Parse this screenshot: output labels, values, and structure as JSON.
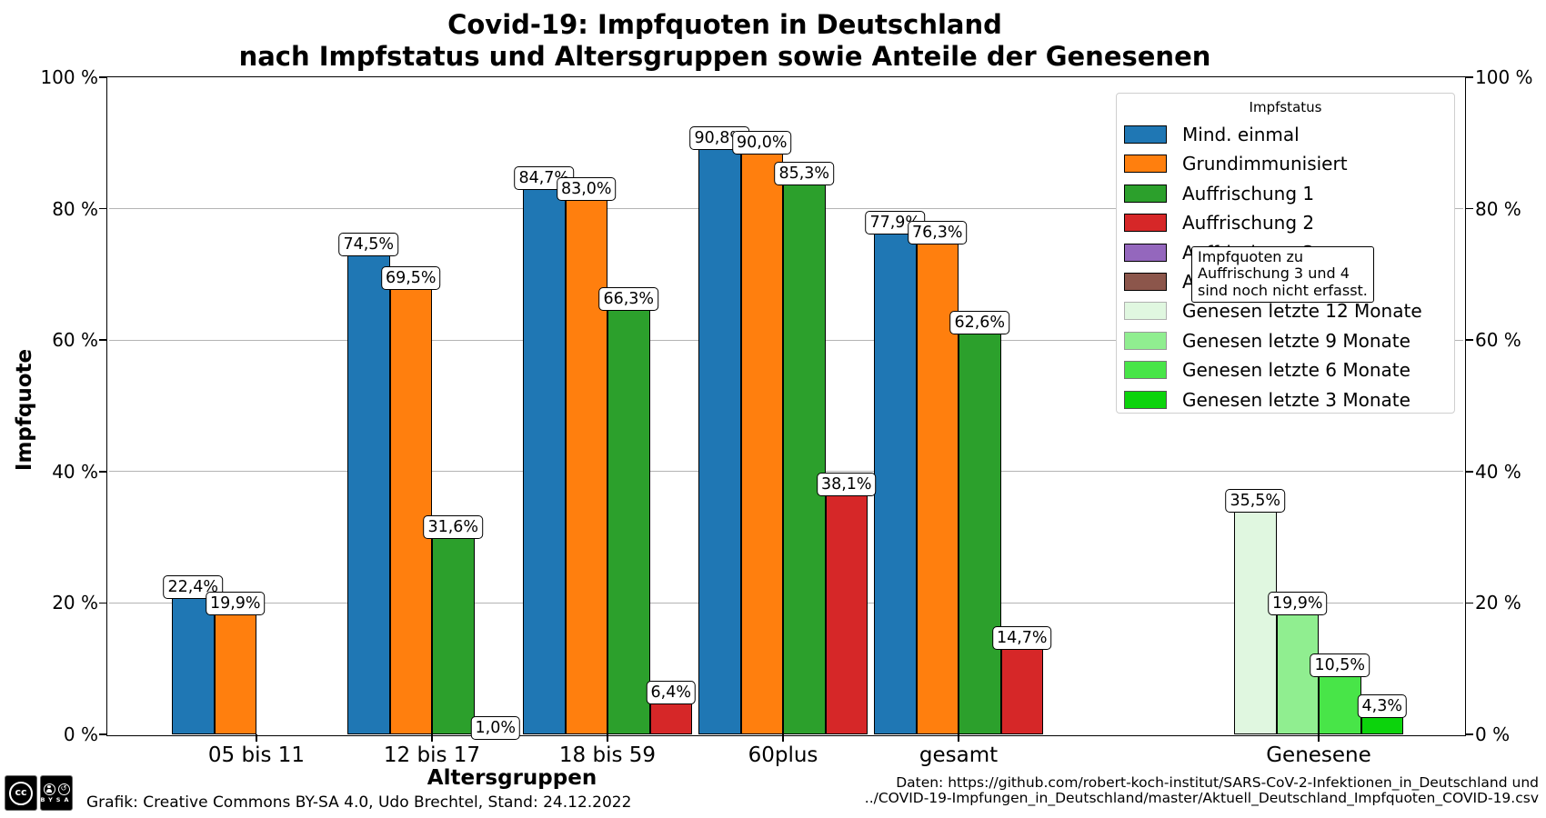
{
  "title": {
    "line1": "Covid-19: Impfquoten in Deutschland",
    "line2": "nach Impfstatus und Altersgruppen sowie Anteile der Genesenen"
  },
  "chart_data": {
    "type": "bar",
    "title": "Covid-19: Impfquoten in Deutschland nach Impfstatus und Altersgruppen sowie Anteile der Genesenen",
    "xlabel": "Altersgruppen",
    "ylabel": "Impfquote",
    "ylim": [
      0,
      100
    ],
    "yticks": [
      0,
      20,
      40,
      60,
      80,
      100
    ],
    "ytick_suffix": " %",
    "grid": "horizontal-only",
    "value_label_format": "decimal-comma-percent",
    "categories": [
      "05 bis 11",
      "12 bis 17",
      "18 bis 59",
      "60plus",
      "gesamt"
    ],
    "series": [
      {
        "name": "Mind. einmal",
        "color": "#1f77b4",
        "values": [
          22.4,
          74.5,
          84.7,
          90.8,
          77.9
        ]
      },
      {
        "name": "Grundimmunisiert",
        "color": "#ff7f0e",
        "values": [
          19.9,
          69.5,
          83.0,
          90.0,
          76.3
        ]
      },
      {
        "name": "Auffrischung 1",
        "color": "#2ca02c",
        "values": [
          null,
          31.6,
          66.3,
          85.3,
          62.6
        ]
      },
      {
        "name": "Auffrischung 2",
        "color": "#d62728",
        "values": [
          null,
          1.0,
          6.4,
          38.1,
          14.7
        ]
      }
    ],
    "recovered_group": {
      "category": "Genesene",
      "bars": [
        {
          "name": "Genesen letzte 12 Monate",
          "color": "#e0f7e0",
          "value": 35.5
        },
        {
          "name": "Genesen letzte 9 Monate",
          "color": "#90ee90",
          "value": 19.9
        },
        {
          "name": "Genesen letzte 6 Monate",
          "color": "#48e548",
          "value": 10.5
        },
        {
          "name": "Genesen letzte 3 Monate",
          "color": "#0cd30c",
          "value": 4.3
        }
      ]
    }
  },
  "legend": {
    "title": "Impfstatus",
    "entries": [
      {
        "label": "Mind. einmal",
        "color": "#1f77b4",
        "border": "#000000"
      },
      {
        "label": "Grundimmunisiert",
        "color": "#ff7f0e",
        "border": "#000000"
      },
      {
        "label": "Auffrischung 1",
        "color": "#2ca02c",
        "border": "#000000"
      },
      {
        "label": "Auffrischung 2",
        "color": "#d62728",
        "border": "#000000"
      },
      {
        "label": "Auffrischung 3",
        "color": "#9467bd",
        "border": "#000000"
      },
      {
        "label": "Auffrischung 4",
        "color": "#8c564b",
        "border": "#000000"
      },
      {
        "label": "Genesen letzte 12 Monate",
        "color": "#e0f7e0",
        "border": "#b0b0b0"
      },
      {
        "label": "Genesen letzte 9 Monate",
        "color": "#90ee90",
        "border": "#9a9a9a"
      },
      {
        "label": "Genesen letzte 6 Monate",
        "color": "#48e548",
        "border": "#7a7a7a"
      },
      {
        "label": "Genesen letzte 3 Monate",
        "color": "#0cd30c",
        "border": "#555555"
      }
    ]
  },
  "annotation": {
    "lines": [
      "Impfquoten zu",
      "Auffrischung 3 und 4",
      "sind noch nicht erfasst."
    ]
  },
  "footer": {
    "grafik": "Grafik: Creative Commons BY-SA 4.0, Udo Brechtel, Stand: 24.12.2022",
    "daten_line1": "Daten: https://github.com/robert-koch-institut/SARS-CoV-2-Infektionen_in_Deutschland und",
    "daten_line2": "../COVID-19-Impfungen_in_Deutschland/master/Aktuell_Deutschland_Impfquoten_COVID-19.csv",
    "cc": "cc",
    "cc_by": "BY",
    "cc_sa": "SA"
  }
}
